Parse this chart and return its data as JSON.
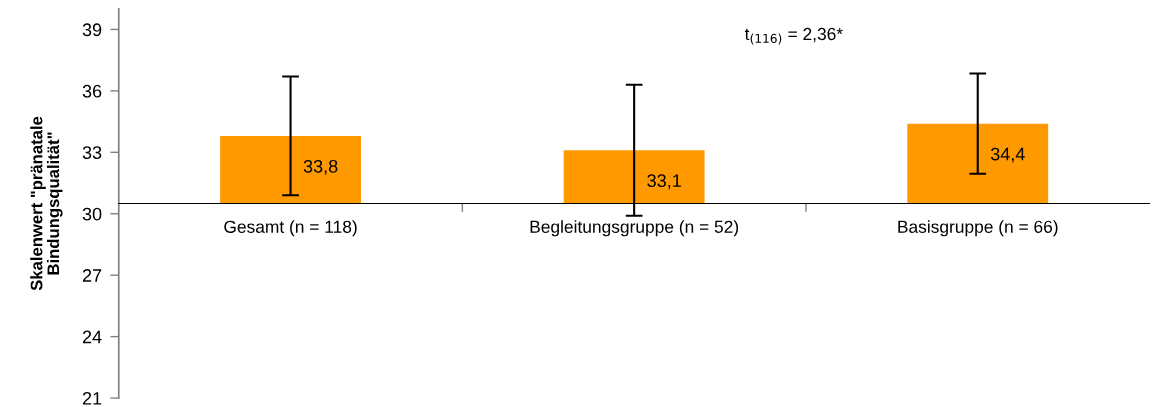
{
  "chart_data": {
    "type": "bar",
    "ylabel": "Skalenwert \"pränatale\nBindungsqualität\"",
    "categories": [
      "Gesamt (n = 118)",
      "Begleitungsgruppe (n = 52)",
      "Basisgruppe (n = 66)"
    ],
    "base": [
      30.5,
      30.5,
      30.5
    ],
    "values": [
      3.3,
      2.6,
      3.9
    ],
    "value_labels": [
      "33,8",
      "33,1",
      "34,4"
    ],
    "errors": [
      2.9,
      3.2,
      2.45
    ],
    "color": "#ff9900",
    "ylim": [
      21,
      40
    ],
    "yticks": [
      21,
      24,
      27,
      30,
      33,
      36,
      39
    ],
    "annotations": [
      "t$_{(116)}$ = 2,36*"
    ]
  }
}
